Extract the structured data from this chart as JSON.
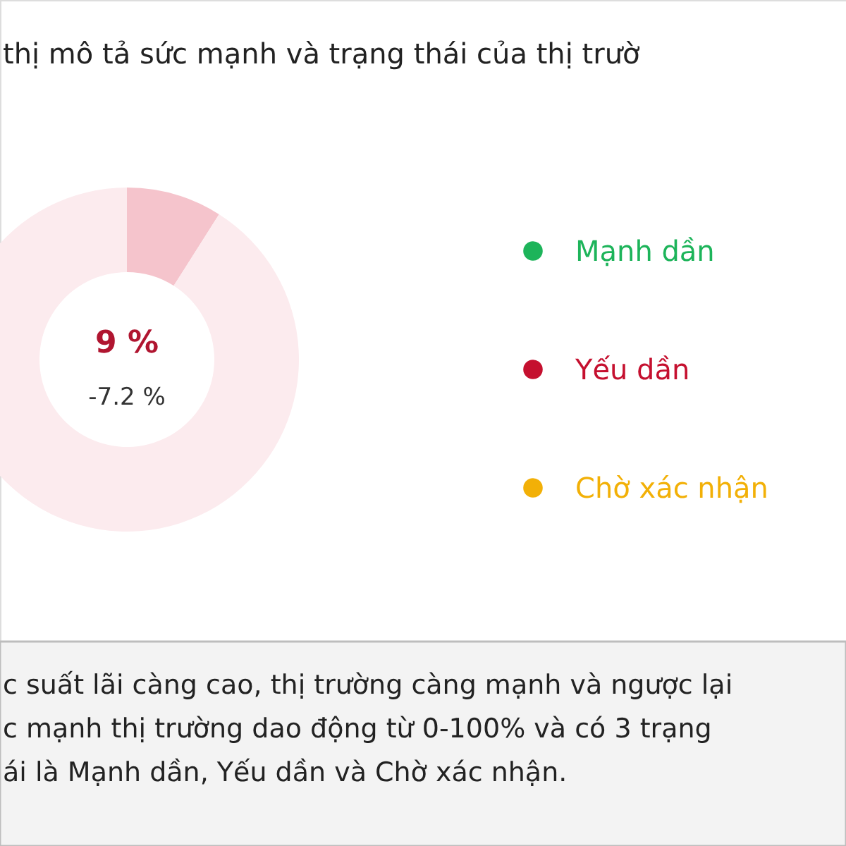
{
  "chart_data": [
    {
      "type": "donut",
      "title": "thị mô tả sức mạnh và trạng thái của thị trườ",
      "categories": [
        null,
        null
      ],
      "values": [
        9,
        91
      ],
      "colors": [
        "#f5c4cc",
        "#fcebee"
      ],
      "annotations": [
        "9 %",
        "-7.2 %",
        "c suất lãi càng cao, thị trường càng mạnh và ngược lại",
        "c mạnh thị trường dao động từ 0-100% và có 3 trạng",
        "ái là Mạnh dần, Yếu dần và Chờ xác nhận."
      ]
    },
    {
      "type": "other",
      "legend": "right",
      "series": [
        {
          "name": "Mạnh dần",
          "color": "#1db45a"
        },
        {
          "name": "Yếu dần",
          "color": "#c5102f"
        },
        {
          "name": "Chờ xác nhận",
          "color": "#f2b007"
        }
      ]
    }
  ]
}
